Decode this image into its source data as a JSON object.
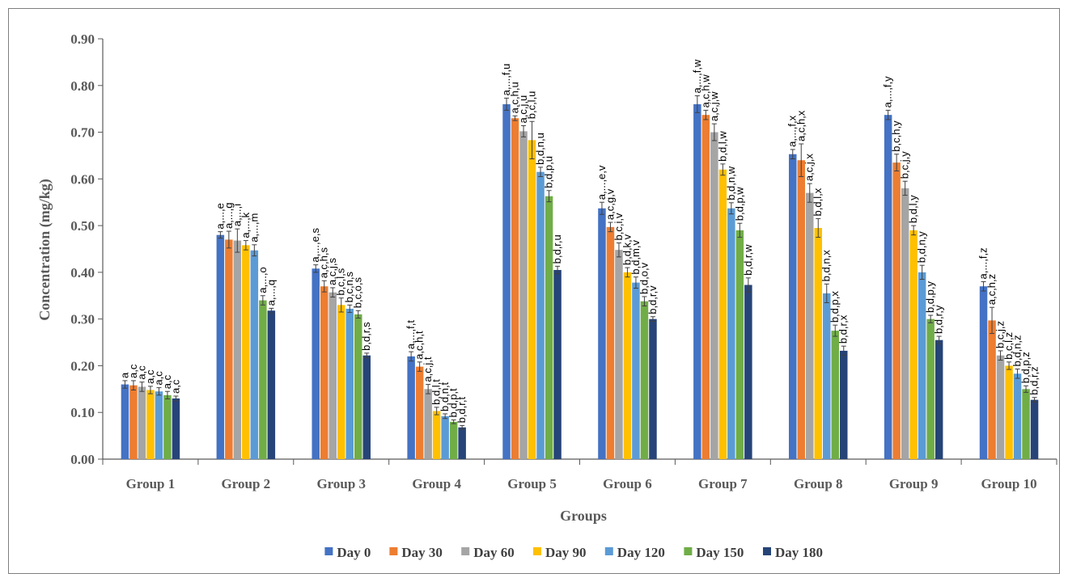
{
  "chart_data": {
    "type": "bar",
    "title": "",
    "xlabel": "Groups",
    "ylabel": "Concentration (mg/kg)",
    "ylim": [
      0,
      0.9
    ],
    "yticks": [
      "0.00",
      "0.10",
      "0.20",
      "0.30",
      "0.40",
      "0.50",
      "0.60",
      "0.70",
      "0.80",
      "0.90"
    ],
    "grid": false,
    "legend_position": "bottom",
    "categories": [
      "Group 1",
      "Group 2",
      "Group 3",
      "Group 4",
      "Group 5",
      "Group 6",
      "Group 7",
      "Group 8",
      "Group 9",
      "Group 10"
    ],
    "series": [
      {
        "name": "Day 0",
        "color": "#4472c4",
        "values": [
          0.16,
          0.48,
          0.408,
          0.22,
          0.76,
          0.537,
          0.76,
          0.653,
          0.737,
          0.37
        ],
        "errors": [
          0.008,
          0.007,
          0.008,
          0.01,
          0.013,
          0.013,
          0.018,
          0.01,
          0.01,
          0.01
        ],
        "labels": [
          "a",
          "a,...,e",
          "a,...,e,s",
          "a,...,f,t",
          "a,...,f,u",
          "a,...,e,v",
          "a,...,f,w",
          "a,...,f,x",
          "a,...,f,y",
          "a,...,f,z"
        ]
      },
      {
        "name": "Day 30",
        "color": "#ed7d31",
        "values": [
          0.158,
          0.47,
          0.37,
          0.198,
          0.73,
          0.497,
          0.737,
          0.64,
          0.635,
          0.297
        ],
        "errors": [
          0.01,
          0.018,
          0.012,
          0.01,
          0.005,
          0.01,
          0.01,
          0.035,
          0.018,
          0.028
        ],
        "labels": [
          "a,c",
          "a,...,g",
          "a,c,h,s",
          "a,c,h,t",
          "a,c,h,u",
          "a,c,g,v",
          "a,c,h,w",
          "a,c,h,x",
          "b,c,h,y",
          "a,c,h,z"
        ]
      },
      {
        "name": "Day 60",
        "color": "#a5a5a5",
        "values": [
          0.155,
          0.468,
          0.357,
          0.15,
          0.702,
          0.448,
          0.7,
          0.57,
          0.58,
          0.222
        ],
        "errors": [
          0.01,
          0.025,
          0.01,
          0.01,
          0.012,
          0.015,
          0.018,
          0.02,
          0.015,
          0.01
        ],
        "labels": [
          "a,c",
          "a,...,i",
          "a,c,j,s",
          "a,c,j,t",
          "a,c,j,u",
          "b,c,i,v",
          "a,c,j,w",
          "a,c,j,x",
          "b,c,j,y",
          "b,c,j,z"
        ]
      },
      {
        "name": "Day 90",
        "color": "#ffc000",
        "values": [
          0.148,
          0.458,
          0.33,
          0.103,
          0.683,
          0.4,
          0.62,
          0.495,
          0.49,
          0.2
        ],
        "errors": [
          0.008,
          0.01,
          0.015,
          0.008,
          0.04,
          0.01,
          0.012,
          0.02,
          0.01,
          0.008
        ],
        "labels": [
          "a,c",
          "a,...,k",
          "b,c,l,s",
          "b,d,l,t",
          "b,c,l,u",
          "b,d,k,v",
          "b,d,l,w",
          "b,d,l,x",
          "b,d,l,y",
          "b,c,l,z"
        ]
      },
      {
        "name": "Day 120",
        "color": "#5b9bd5",
        "values": [
          0.145,
          0.447,
          0.322,
          0.092,
          0.615,
          0.378,
          0.537,
          0.355,
          0.4,
          0.183
        ],
        "errors": [
          0.008,
          0.012,
          0.008,
          0.005,
          0.01,
          0.012,
          0.012,
          0.02,
          0.015,
          0.01
        ],
        "labels": [
          "a,c",
          "a,...,m",
          "b,c,n,s",
          "b,d,n,t",
          "b,d,n,u",
          "b,d,m,v",
          "b,d,n,w",
          "b,d,n,x",
          "b,d,n,y",
          "b,d,n,z"
        ]
      },
      {
        "name": "Day 150",
        "color": "#70ad47",
        "values": [
          0.137,
          0.34,
          0.31,
          0.08,
          0.563,
          0.338,
          0.49,
          0.275,
          0.3,
          0.15
        ],
        "errors": [
          0.008,
          0.01,
          0.008,
          0.004,
          0.012,
          0.01,
          0.015,
          0.012,
          0.008,
          0.007
        ],
        "labels": [
          "a,c",
          "a,...,o",
          "b,c,o,s",
          "b,d,p,t",
          "b,d,p,u",
          "b,d,o,v",
          "b,d,p,w",
          "b,d,p,x",
          "b,d,p,y",
          "b,d,p,z"
        ]
      },
      {
        "name": "Day 180",
        "color": "#264478",
        "values": [
          0.13,
          0.318,
          0.222,
          0.068,
          0.405,
          0.3,
          0.373,
          0.232,
          0.255,
          0.127
        ],
        "errors": [
          0.005,
          0.005,
          0.005,
          0.004,
          0.008,
          0.005,
          0.015,
          0.01,
          0.008,
          0.005
        ],
        "labels": [
          "a,c",
          "a,...,q",
          "b,d,r,s",
          "b,d,r,t",
          "b,d,r,u",
          "b,d,r,v",
          "b,d,r,w",
          "b,d,r,x",
          "b,d,r,y",
          "b,d,r,z"
        ]
      }
    ]
  }
}
